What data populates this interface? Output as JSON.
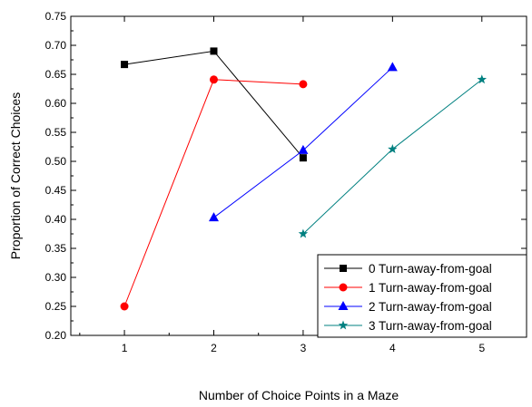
{
  "chart_data": {
    "type": "line",
    "xlabel": "Number of Choice Points in a Maze",
    "ylabel": "Proportion of Correct Choices",
    "xlim": [
      0.4,
      5.5
    ],
    "ylim": [
      0.2,
      0.75
    ],
    "x_ticks": [
      1,
      2,
      3,
      4,
      5
    ],
    "x_tick_labels": [
      "1",
      "2",
      "3",
      "4",
      "5"
    ],
    "y_ticks": [
      0.2,
      0.25,
      0.3,
      0.35,
      0.4,
      0.45,
      0.5,
      0.55,
      0.6,
      0.65,
      0.7,
      0.75
    ],
    "y_tick_labels": [
      "0.20",
      "0.25",
      "0.30",
      "0.35",
      "0.40",
      "0.45",
      "0.50",
      "0.55",
      "0.60",
      "0.65",
      "0.70",
      "0.75"
    ],
    "grid": false,
    "legend_position": "bottom-right",
    "series": [
      {
        "name": "0 Turn-away-from-goal",
        "color": "#000000",
        "marker": "square",
        "x": [
          1,
          2,
          3
        ],
        "values": [
          0.667,
          0.69,
          0.506
        ]
      },
      {
        "name": "1 Turn-away-from-goal",
        "color": "#ff0000",
        "marker": "circle",
        "x": [
          1,
          2,
          3
        ],
        "values": [
          0.25,
          0.641,
          0.633
        ]
      },
      {
        "name": "2 Turn-away-from-goal",
        "color": "#0000ff",
        "marker": "triangle",
        "x": [
          2,
          3,
          4
        ],
        "values": [
          0.403,
          0.519,
          0.662
        ]
      },
      {
        "name": "3 Turn-away-from-goal",
        "color": "#008080",
        "marker": "star",
        "x": [
          3,
          4,
          5
        ],
        "values": [
          0.375,
          0.521,
          0.641
        ]
      }
    ]
  }
}
